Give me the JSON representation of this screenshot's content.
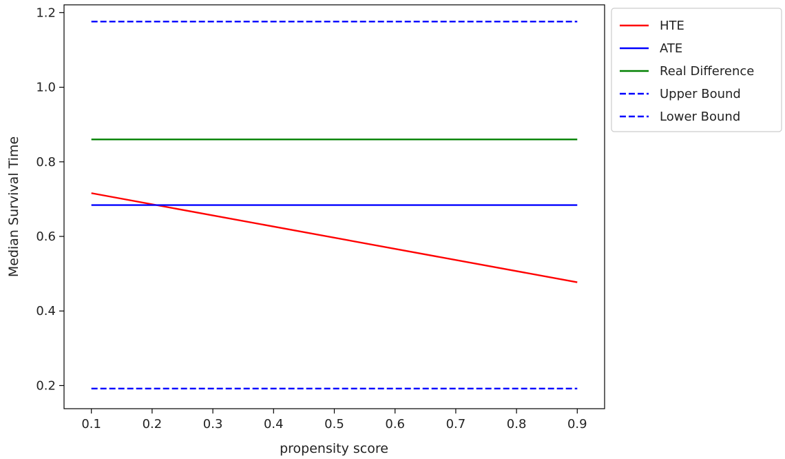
{
  "chart_data": {
    "type": "line",
    "xlabel": "propensity score",
    "ylabel": "Median Survival Time",
    "xlim": [
      0.055,
      0.945
    ],
    "ylim": [
      0.138,
      1.221
    ],
    "x_ticks": [
      0.1,
      0.2,
      0.3,
      0.4,
      0.5,
      0.6,
      0.7,
      0.8,
      0.9
    ],
    "x_tick_labels": [
      "0.1",
      "0.2",
      "0.3",
      "0.4",
      "0.5",
      "0.6",
      "0.7",
      "0.8",
      "0.9"
    ],
    "y_ticks": [
      0.2,
      0.4,
      0.6,
      0.8,
      1.0,
      1.2
    ],
    "y_tick_labels": [
      "0.2",
      "0.4",
      "0.6",
      "0.8",
      "1.0",
      "1.2"
    ],
    "grid": false,
    "legend_position": "outside-right-top",
    "series": [
      {
        "name": "HTE",
        "x": [
          0.1,
          0.9
        ],
        "y": [
          0.716,
          0.477
        ],
        "color": "#ff0000",
        "dash": "solid"
      },
      {
        "name": "ATE",
        "x": [
          0.1,
          0.9
        ],
        "y": [
          0.684,
          0.684
        ],
        "color": "#0000ff",
        "dash": "solid"
      },
      {
        "name": "Real Difference",
        "x": [
          0.1,
          0.9
        ],
        "y": [
          0.86,
          0.86
        ],
        "color": "#008000",
        "dash": "solid"
      },
      {
        "name": "Upper Bound",
        "x": [
          0.1,
          0.9
        ],
        "y": [
          1.176,
          1.176
        ],
        "color": "#0000ff",
        "dash": "dashed"
      },
      {
        "name": "Lower Bound",
        "x": [
          0.1,
          0.9
        ],
        "y": [
          0.192,
          0.192
        ],
        "color": "#0000ff",
        "dash": "dashed"
      }
    ]
  }
}
